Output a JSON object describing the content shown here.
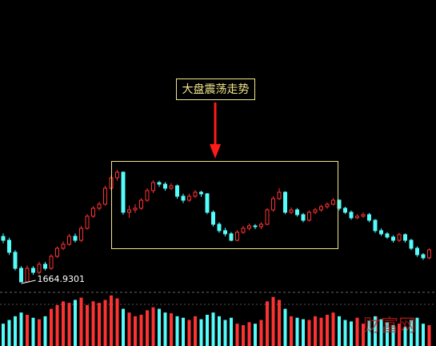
{
  "chart_data": {
    "type": "candlestick",
    "annotation": "大盘震荡走势",
    "watermark": "财富网",
    "up_color": "#ff3232",
    "down_color": "#54fcfc",
    "ylim": [
      1561,
      6223
    ],
    "vlim": [
      0,
      70
    ],
    "open": [
      2400,
      2338,
      2144,
      1885,
      1665,
      1885,
      1820,
      1950,
      1885,
      2079,
      2209,
      2273,
      2403,
      2338,
      2532,
      2727,
      2856,
      2921,
      3180,
      3348,
      3439,
      2791,
      2830,
      2856,
      2986,
      3141,
      3271,
      3245,
      3180,
      3219,
      3050,
      2986,
      3050,
      3115,
      3089,
      2791,
      2597,
      2494,
      2442,
      2338,
      2468,
      2532,
      2571,
      2558,
      2597,
      2830,
      3011,
      3115,
      2791,
      2830,
      2752,
      2662,
      2791,
      2830,
      2882,
      2921,
      2986,
      2856,
      2791,
      2701,
      2727,
      2752,
      2662,
      2494,
      2442,
      2390,
      2338,
      2429,
      2338,
      2209,
      2105,
      2054
    ],
    "high": [
      2450,
      2380,
      2180,
      1920,
      1930,
      1920,
      1990,
      1990,
      2110,
      2240,
      2320,
      2440,
      2450,
      2570,
      2760,
      2890,
      2960,
      3220,
      3390,
      3478,
      3450,
      2900,
      2920,
      3020,
      3180,
      3310,
      3300,
      3280,
      3260,
      3240,
      3090,
      3090,
      3150,
      3140,
      3100,
      2820,
      2630,
      2540,
      2470,
      2500,
      2570,
      2610,
      2600,
      2630,
      2860,
      3050,
      3180,
      3130,
      2870,
      2860,
      2780,
      2820,
      2860,
      2910,
      2950,
      3020,
      3000,
      2880,
      2820,
      2760,
      2790,
      2780,
      2680,
      2530,
      2470,
      2420,
      2460,
      2450,
      2360,
      2240,
      2130,
      2210
    ],
    "low": [
      2290,
      2100,
      1850,
      1664.9301,
      1690,
      1780,
      1790,
      1850,
      1860,
      2050,
      2180,
      2250,
      2300,
      2310,
      2510,
      2700,
      2820,
      2900,
      3150,
      3300,
      2750,
      2700,
      2780,
      2830,
      2960,
      3100,
      3200,
      3140,
      3150,
      3010,
      2940,
      2960,
      3020,
      3040,
      2760,
      2560,
      2460,
      2400,
      2320,
      2320,
      2440,
      2500,
      2520,
      2520,
      2580,
      2800,
      2990,
      2760,
      2760,
      2720,
      2630,
      2640,
      2760,
      2800,
      2850,
      2900,
      2820,
      2760,
      2670,
      2680,
      2700,
      2630,
      2460,
      2410,
      2360,
      2300,
      2310,
      2300,
      2180,
      2070,
      2020,
      2030
    ],
    "close": [
      2338,
      2144,
      1885,
      1665,
      1885,
      1820,
      1950,
      1885,
      2079,
      2209,
      2273,
      2403,
      2338,
      2532,
      2727,
      2856,
      2921,
      3180,
      3348,
      3439,
      2791,
      2830,
      2856,
      2986,
      3141,
      3271,
      3245,
      3180,
      3219,
      3050,
      2986,
      3050,
      3115,
      3089,
      2791,
      2597,
      2494,
      2442,
      2338,
      2468,
      2532,
      2571,
      2558,
      2597,
      2830,
      3011,
      3115,
      2791,
      2830,
      2752,
      2662,
      2791,
      2830,
      2882,
      2921,
      2986,
      2856,
      2791,
      2701,
      2727,
      2752,
      2662,
      2494,
      2442,
      2390,
      2338,
      2429,
      2338,
      2209,
      2105,
      2054,
      2183
    ],
    "volume": [
      30,
      35,
      40,
      45,
      42,
      38,
      36,
      40,
      50,
      55,
      60,
      58,
      62,
      65,
      55,
      60,
      58,
      62,
      68,
      64,
      50,
      45,
      40,
      42,
      48,
      52,
      50,
      45,
      44,
      40,
      38,
      35,
      40,
      36,
      42,
      45,
      40,
      35,
      38,
      30,
      28,
      32,
      30,
      35,
      60,
      66,
      62,
      50,
      40,
      38,
      36,
      35,
      40,
      38,
      42,
      45,
      40,
      35,
      33,
      38,
      30,
      34,
      40,
      36,
      32,
      28,
      30,
      26,
      35,
      38,
      30,
      28
    ]
  }
}
